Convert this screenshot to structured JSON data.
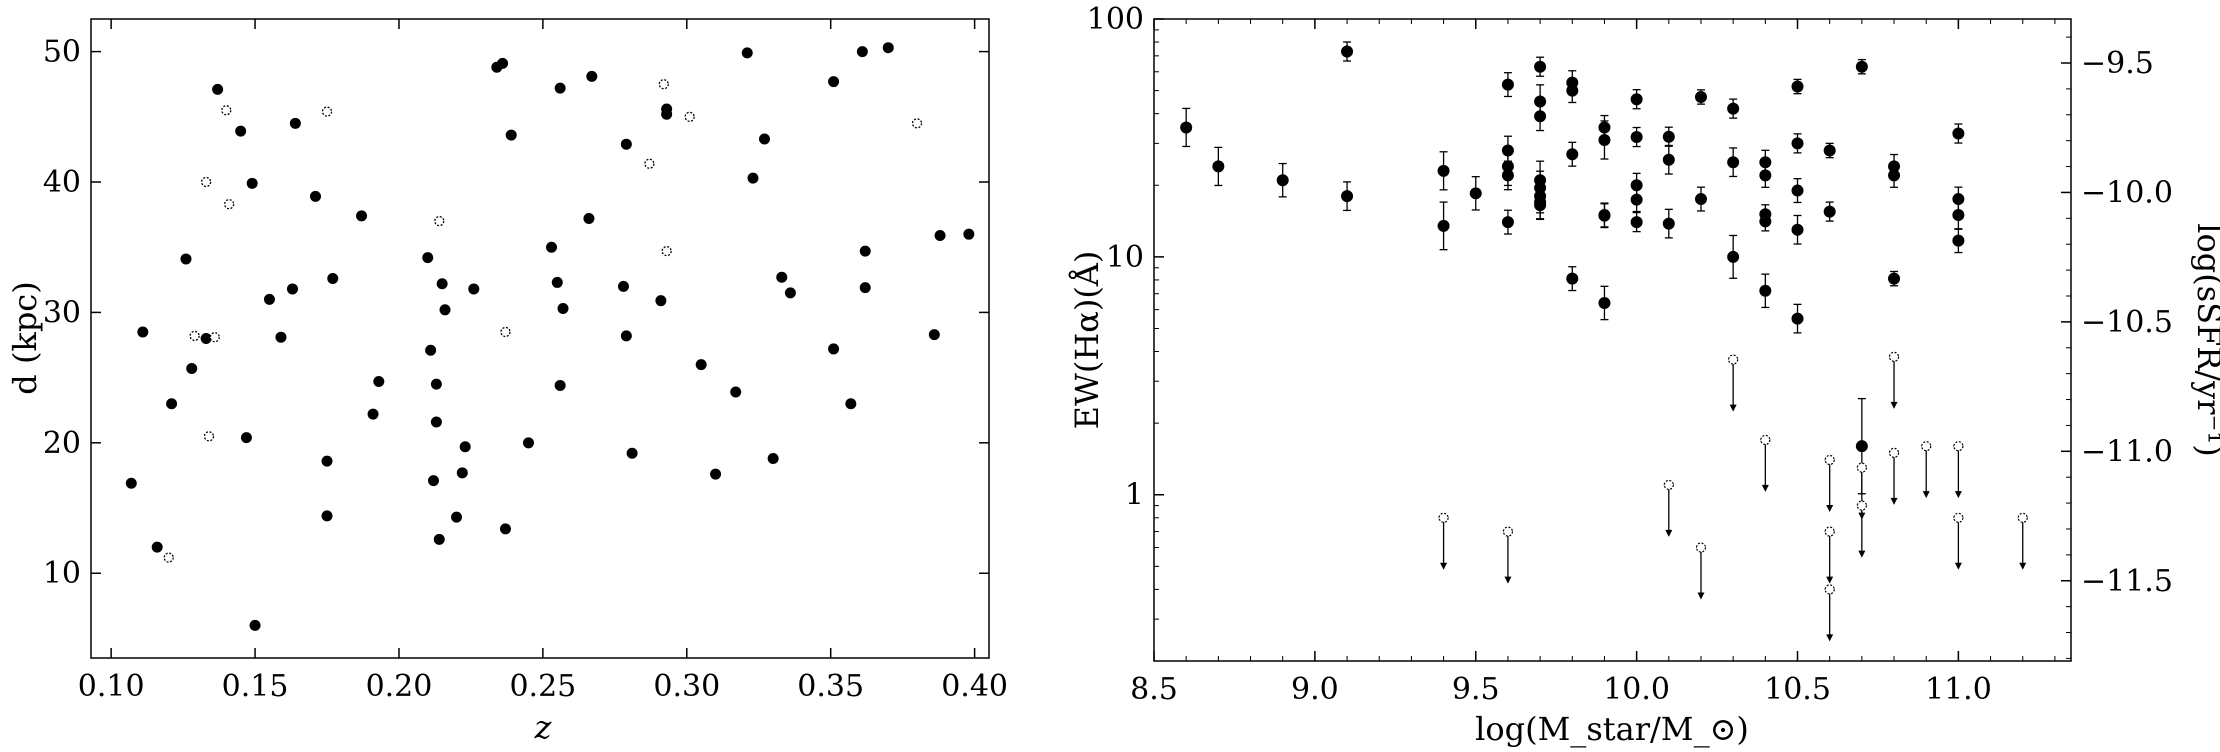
{
  "chart_data": [
    {
      "type": "scatter",
      "title": "",
      "xlabel": "z",
      "ylabel": "d (kpc)",
      "xlim": [
        0.093,
        0.405
      ],
      "ylim": [
        3.5,
        52.5
      ],
      "xticks": [
        0.1,
        0.15,
        0.2,
        0.25,
        0.3,
        0.35,
        0.4
      ],
      "xtick_labels": [
        "0.10",
        "0.15",
        "0.20",
        "0.25",
        "0.30",
        "0.35",
        "0.40"
      ],
      "yticks": [
        10,
        20,
        30,
        40,
        50
      ],
      "ytick_labels": [
        "10",
        "20",
        "30",
        "40",
        "50"
      ],
      "grid": false,
      "series": [
        {
          "marker": "filled",
          "x": [
            0.107,
            0.111,
            0.116,
            0.121,
            0.126,
            0.128,
            0.133,
            0.137,
            0.145,
            0.147,
            0.149,
            0.15,
            0.155,
            0.159,
            0.163,
            0.164,
            0.171,
            0.175,
            0.175,
            0.177,
            0.187,
            0.191,
            0.193,
            0.21,
            0.211,
            0.212,
            0.213,
            0.213,
            0.214,
            0.215,
            0.216,
            0.22,
            0.222,
            0.223,
            0.226,
            0.234,
            0.236,
            0.237,
            0.239,
            0.245,
            0.253,
            0.255,
            0.256,
            0.256,
            0.257,
            0.266,
            0.267,
            0.278,
            0.279,
            0.279,
            0.281,
            0.291,
            0.293,
            0.293,
            0.305,
            0.31,
            0.317,
            0.321,
            0.323,
            0.327,
            0.33,
            0.333,
            0.336,
            0.351,
            0.351,
            0.357,
            0.361,
            0.362,
            0.362,
            0.37,
            0.386,
            0.388,
            0.398
          ],
          "y": [
            16.9,
            28.5,
            12.0,
            23.0,
            34.1,
            25.7,
            28.0,
            47.1,
            43.9,
            20.4,
            39.9,
            6.0,
            31.0,
            28.1,
            31.8,
            44.5,
            38.9,
            18.6,
            14.4,
            32.6,
            37.4,
            22.2,
            24.7,
            34.2,
            27.1,
            17.1,
            24.5,
            21.6,
            12.6,
            32.2,
            30.2,
            14.3,
            17.7,
            19.7,
            31.8,
            48.8,
            49.1,
            13.4,
            43.6,
            20.0,
            35.0,
            32.3,
            47.2,
            24.4,
            30.3,
            37.2,
            48.1,
            32.0,
            42.9,
            28.2,
            19.2,
            30.9,
            45.2,
            45.6,
            26.0,
            17.6,
            23.9,
            49.9,
            40.3,
            43.3,
            18.8,
            32.7,
            31.5,
            27.2,
            47.7,
            23.0,
            50.0,
            31.9,
            34.7,
            50.3,
            28.3,
            35.9,
            36.0
          ]
        },
        {
          "marker": "open",
          "x": [
            0.12,
            0.129,
            0.133,
            0.134,
            0.136,
            0.14,
            0.141,
            0.175,
            0.214,
            0.237,
            0.287,
            0.292,
            0.293,
            0.301,
            0.38
          ],
          "y": [
            11.2,
            28.2,
            40.0,
            20.5,
            28.1,
            45.5,
            38.3,
            45.4,
            37.0,
            28.5,
            41.4,
            47.5,
            34.7,
            45.0,
            44.5
          ]
        }
      ]
    },
    {
      "type": "scatter",
      "title": "",
      "xlabel": "log(M_star/M_⊙)",
      "ylabel": "EW(Hα)(Å)",
      "y2label": "log(sSFR/yr⁻¹)",
      "xlim": [
        8.5,
        11.35
      ],
      "ylim": [
        0.2,
        100
      ],
      "yscale": "log",
      "xticks": [
        8.5,
        9.0,
        9.5,
        10.0,
        10.5,
        11.0
      ],
      "xtick_labels": [
        "8.5",
        "9.0",
        "9.5",
        "10.0",
        "10.5",
        "11.0"
      ],
      "yticks": [
        1,
        10,
        100
      ],
      "ytick_labels": [
        "1",
        "10",
        "100"
      ],
      "y2lim": [
        -11.81,
        -9.33
      ],
      "y2ticks": [
        -9.5,
        -10.0,
        -10.5,
        -11.0,
        -11.5
      ],
      "y2tick_labels": [
        "−9.5",
        "−10.0",
        "−10.5",
        "−11.0",
        "−11.5"
      ],
      "grid": false,
      "series": [
        {
          "marker": "filled-with-errorbars",
          "x": [
            8.6,
            8.7,
            8.9,
            9.1,
            9.1,
            9.4,
            9.4,
            9.5,
            9.6,
            9.6,
            9.6,
            9.6,
            9.6,
            9.7,
            9.7,
            9.7,
            9.7,
            9.7,
            9.7,
            9.7,
            9.7,
            9.8,
            9.8,
            9.8,
            9.8,
            9.9,
            9.9,
            9.9,
            9.9,
            9.9,
            10.0,
            10.0,
            10.0,
            10.0,
            10.0,
            10.1,
            10.1,
            10.1,
            10.2,
            10.2,
            10.3,
            10.3,
            10.3,
            10.4,
            10.4,
            10.4,
            10.4,
            10.4,
            10.5,
            10.5,
            10.5,
            10.5,
            10.5,
            10.6,
            10.6,
            10.7,
            10.7,
            10.8,
            10.8,
            10.8,
            11.0,
            11.0,
            11.0,
            11.0
          ],
          "y": [
            35,
            24,
            21,
            73,
            18,
            23,
            13.5,
            18.5,
            53,
            28,
            24,
            22,
            14,
            63,
            45,
            39,
            21,
            19.5,
            18,
            17,
            16.5,
            54,
            50,
            27,
            8.1,
            35,
            31,
            15,
            14.9,
            6.4,
            46,
            31.9,
            20,
            17.4,
            14,
            32,
            25.6,
            13.8,
            47,
            17.5,
            42,
            25,
            10,
            25,
            22,
            15.1,
            14.1,
            7.2,
            52,
            30,
            19,
            13,
            5.5,
            28,
            15.5,
            63,
            1.6,
            24,
            22,
            8.1,
            33,
            17.5,
            15,
            11.7
          ],
          "yerr": [
            0.08,
            0.08,
            0.07,
            0.04,
            0.06,
            0.08,
            0.1,
            0.07,
            0.05,
            0.06,
            0.08,
            0.06,
            0.05,
            0.04,
            0.07,
            0.06,
            0.08,
            0.07,
            0.07,
            0.07,
            0.06,
            0.05,
            0.05,
            0.05,
            0.05,
            0.05,
            0.08,
            0.05,
            0.05,
            0.07,
            0.04,
            0.04,
            0.05,
            0.05,
            0.04,
            0.04,
            0.06,
            0.06,
            0.03,
            0.05,
            0.04,
            0.06,
            0.09,
            0.05,
            0.05,
            0.04,
            0.04,
            0.07,
            0.03,
            0.04,
            0.05,
            0.06,
            0.06,
            0.03,
            0.04,
            0.03,
            0.2,
            0.05,
            0.05,
            0.03,
            0.04,
            0.05,
            0.06,
            0.05
          ]
        },
        {
          "marker": "open-upper-limit",
          "x": [
            9.4,
            9.6,
            10.1,
            10.2,
            10.3,
            10.4,
            10.6,
            10.6,
            10.6,
            10.7,
            10.7,
            10.8,
            10.8,
            10.9,
            11.0,
            11.0,
            11.2
          ],
          "y": [
            0.8,
            0.7,
            1.1,
            0.6,
            3.7,
            1.7,
            1.4,
            0.7,
            0.4,
            1.3,
            0.9,
            3.8,
            1.5,
            1.6,
            1.6,
            0.8,
            0.8
          ]
        }
      ]
    }
  ],
  "colors": {
    "marker": "#000000",
    "axes": "#000000",
    "background": "#ffffff"
  }
}
